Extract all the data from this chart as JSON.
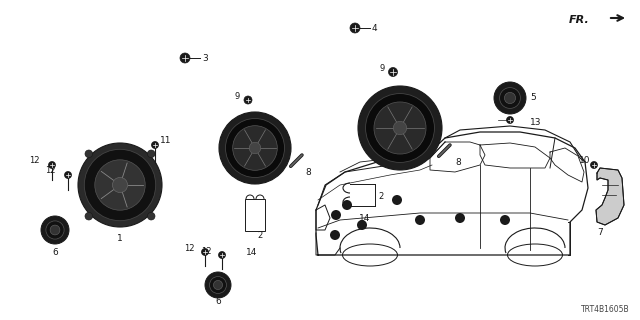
{
  "bg_color": "#ffffff",
  "diagram_code": "TRT4B1605B",
  "fig_width": 6.4,
  "fig_height": 3.2,
  "dpi": 100,
  "line_color": "#1a1a1a",
  "dark_fill": "#1a1a1a",
  "mid_fill": "#555555",
  "light_fill": "#aaaaaa",
  "gray_fill": "#888888"
}
